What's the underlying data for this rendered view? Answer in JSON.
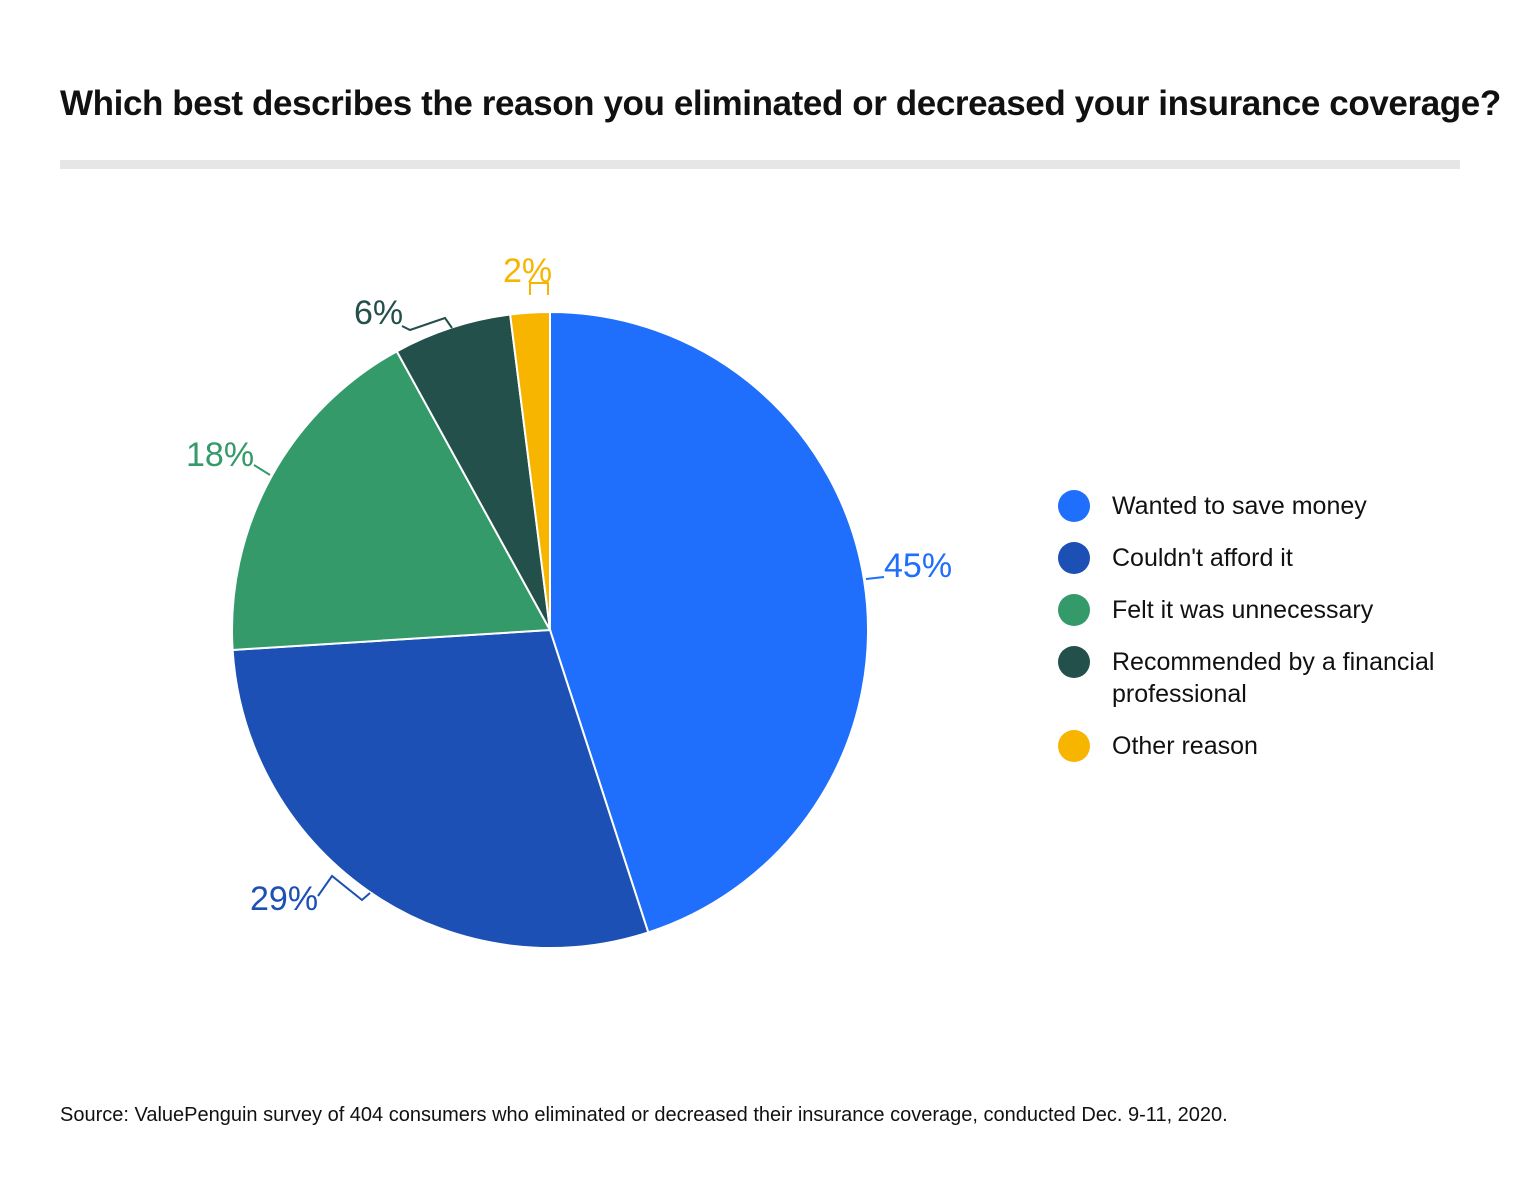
{
  "title": "Which best describes the reason you eliminated or decreased your insurance coverage?",
  "source": "Source: ValuePenguin survey of 404 consumers who eliminated or decreased their insurance coverage, conducted Dec. 9-11, 2020.",
  "chart_data": {
    "type": "pie",
    "title": "Which best describes the reason you eliminated or decreased your insurance coverage?",
    "categories": [
      "Wanted to save money",
      "Couldn't afford it",
      "Felt it was unnecessary",
      "Recommended by a financial professional",
      "Other reason"
    ],
    "values": [
      45,
      29,
      18,
      6,
      2
    ],
    "value_labels": [
      "45%",
      "29%",
      "18%",
      "6%",
      "2%"
    ],
    "colors": [
      "#1f6ffc",
      "#1c50b5",
      "#349a69",
      "#23504a",
      "#f7b500"
    ],
    "legend_position": "right",
    "start": "top, clockwise"
  }
}
